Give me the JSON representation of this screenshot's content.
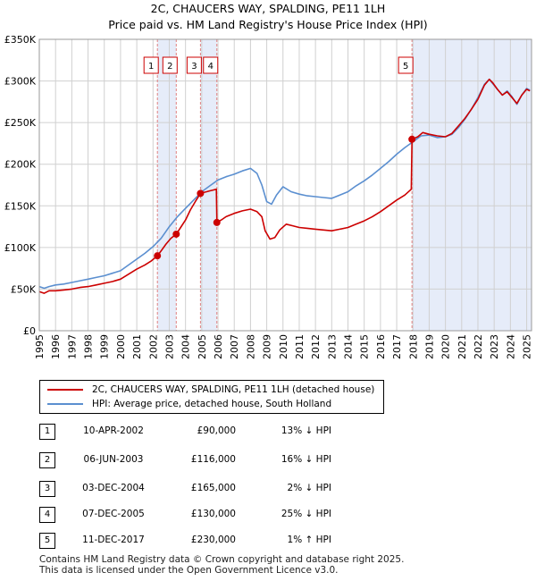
{
  "title": "2C, CHAUCERS WAY, SPALDING, PE11 1LH",
  "subtitle": "Price paid vs. HM Land Registry's House Price Index (HPI)",
  "colors": {
    "property": "#cc0000",
    "hpi": "#5b8fd0",
    "band": "#dde6f7",
    "marker_line": "#e08080"
  },
  "chart_data": {
    "type": "line",
    "title": "2C, CHAUCERS WAY, SPALDING, PE11 1LH",
    "subtitle": "Price paid vs. HM Land Registry's House Price Index (HPI)",
    "xlim": [
      1995,
      2025.3
    ],
    "ylim": [
      0,
      350000
    ],
    "y_ticks": [
      0,
      50000,
      100000,
      150000,
      200000,
      250000,
      300000,
      350000
    ],
    "y_tick_labels": [
      "£0",
      "£50K",
      "£100K",
      "£150K",
      "£200K",
      "£250K",
      "£300K",
      "£350K"
    ],
    "x_ticks": [
      1995,
      1996,
      1997,
      1998,
      1999,
      2000,
      2001,
      2002,
      2003,
      2004,
      2005,
      2006,
      2007,
      2008,
      2009,
      2010,
      2011,
      2012,
      2013,
      2014,
      2015,
      2016,
      2017,
      2018,
      2019,
      2020,
      2021,
      2022,
      2023,
      2024,
      2025
    ],
    "x_tick_labels": [
      "1995",
      "1996",
      "1997",
      "1998",
      "1999",
      "2000",
      "2001",
      "2002",
      "2003",
      "2004",
      "2005",
      "2006",
      "2007",
      "2008",
      "2009",
      "2010",
      "2011",
      "2012",
      "2013",
      "2014",
      "2015",
      "2016",
      "2017",
      "2018",
      "2019",
      "2020",
      "2021",
      "2022",
      "2023",
      "2024",
      "2025"
    ],
    "grid": true,
    "series": [
      {
        "name": "2C, CHAUCERS WAY, SPALDING, PE11 1LH (detached house)",
        "color": "#cc0000",
        "x": [
          1995.0,
          1995.3,
          1995.6,
          1996.0,
          1996.5,
          1997.0,
          1997.5,
          1998.0,
          1998.5,
          1999.0,
          1999.5,
          2000.0,
          2000.5,
          2001.0,
          2001.5,
          2001.9,
          2002.27,
          2002.5,
          2002.8,
          2003.1,
          2003.43,
          2003.7,
          2004.0,
          2004.3,
          2004.6,
          2004.92,
          2005.1,
          2005.3,
          2005.5,
          2005.7,
          2005.9,
          2005.93,
          2006.2,
          2006.5,
          2007.0,
          2007.5,
          2008.0,
          2008.4,
          2008.7,
          2008.9,
          2009.2,
          2009.5,
          2009.8,
          2010.2,
          2010.6,
          2011.0,
          2011.5,
          2012.0,
          2012.5,
          2013.0,
          2013.5,
          2014.0,
          2014.5,
          2015.0,
          2015.5,
          2016.0,
          2016.5,
          2017.0,
          2017.5,
          2017.9,
          2017.94,
          2018.3,
          2018.6,
          2019.0,
          2019.5,
          2020.0,
          2020.4,
          2020.8,
          2021.2,
          2021.6,
          2022.0,
          2022.4,
          2022.7,
          2022.9,
          2023.2,
          2023.5,
          2023.8,
          2024.1,
          2024.4,
          2024.7,
          2025.0,
          2025.2
        ],
        "y": [
          47000,
          45000,
          48000,
          48000,
          49000,
          50000,
          52000,
          53000,
          55000,
          57000,
          59000,
          62000,
          68000,
          74000,
          79000,
          84000,
          90000,
          96000,
          104000,
          111000,
          116000,
          124000,
          133000,
          145000,
          155000,
          165000,
          166000,
          167000,
          168000,
          169000,
          170000,
          130000,
          133000,
          137000,
          141000,
          144000,
          146000,
          143000,
          137000,
          120000,
          110000,
          112000,
          121000,
          128000,
          126000,
          124000,
          123000,
          122000,
          121000,
          120000,
          122000,
          124000,
          128000,
          132000,
          137000,
          143000,
          150000,
          157000,
          163000,
          170000,
          230000,
          233000,
          238000,
          236000,
          234000,
          233000,
          237000,
          246000,
          255000,
          266000,
          278000,
          295000,
          302000,
          298000,
          290000,
          283000,
          287000,
          280000,
          273000,
          283000,
          290000,
          288000
        ]
      },
      {
        "name": "HPI: Average price, detached house, South Holland",
        "color": "#5b8fd0",
        "x": [
          1995.0,
          1995.3,
          1995.6,
          1996.0,
          1996.5,
          1997.0,
          1997.5,
          1998.0,
          1998.5,
          1999.0,
          1999.5,
          2000.0,
          2000.5,
          2001.0,
          2001.5,
          2002.0,
          2002.5,
          2003.0,
          2003.5,
          2004.0,
          2004.5,
          2005.0,
          2005.5,
          2006.0,
          2006.5,
          2007.0,
          2007.5,
          2008.0,
          2008.4,
          2008.7,
          2009.0,
          2009.3,
          2009.6,
          2010.0,
          2010.5,
          2011.0,
          2011.5,
          2012.0,
          2012.5,
          2013.0,
          2013.5,
          2014.0,
          2014.5,
          2015.0,
          2015.5,
          2016.0,
          2016.5,
          2017.0,
          2017.5,
          2018.0,
          2018.5,
          2019.0,
          2019.5,
          2020.0,
          2020.4,
          2020.8,
          2021.2,
          2021.6,
          2022.0,
          2022.4,
          2022.7,
          2022.9,
          2023.2,
          2023.5,
          2023.8,
          2024.1,
          2024.4,
          2024.7,
          2025.0,
          2025.2
        ],
        "y": [
          53000,
          51000,
          53000,
          55000,
          56000,
          58000,
          60000,
          62000,
          64000,
          66000,
          69000,
          72000,
          79000,
          86000,
          93000,
          101000,
          111000,
          125000,
          137000,
          147000,
          157000,
          167000,
          174000,
          181000,
          185000,
          188000,
          192000,
          195000,
          189000,
          175000,
          155000,
          152000,
          163000,
          173000,
          167000,
          164000,
          162000,
          161000,
          160000,
          159000,
          163000,
          167000,
          174000,
          180000,
          187000,
          195000,
          203000,
          212000,
          220000,
          227000,
          234000,
          235000,
          232000,
          233000,
          236000,
          244000,
          254000,
          266000,
          280000,
          296000,
          302000,
          297000,
          290000,
          283000,
          288000,
          281000,
          272000,
          283000,
          291000,
          289000
        ]
      }
    ],
    "sales": [
      {
        "label": "1",
        "x": 2002.27,
        "y": 90000
      },
      {
        "label": "2",
        "x": 2003.43,
        "y": 116000
      },
      {
        "label": "3",
        "x": 2004.92,
        "y": 165000
      },
      {
        "label": "4",
        "x": 2005.93,
        "y": 130000
      },
      {
        "label": "5",
        "x": 2017.94,
        "y": 230000
      }
    ],
    "shaded_bands": [
      [
        2002.27,
        2003.43
      ],
      [
        2004.92,
        2005.93
      ],
      [
        2017.94,
        2025.3
      ]
    ]
  },
  "legend": {
    "property_label": "2C, CHAUCERS WAY, SPALDING, PE11 1LH (detached house)",
    "hpi_label": "HPI: Average price, detached house, South Holland"
  },
  "transactions": [
    {
      "num": "1",
      "date": "10-APR-2002",
      "price": "£90,000",
      "hpi": "13% ↓ HPI"
    },
    {
      "num": "2",
      "date": "06-JUN-2003",
      "price": "£116,000",
      "hpi": "16% ↓ HPI"
    },
    {
      "num": "3",
      "date": "03-DEC-2004",
      "price": "£165,000",
      "hpi": "2% ↓ HPI"
    },
    {
      "num": "4",
      "date": "07-DEC-2005",
      "price": "£130,000",
      "hpi": "25% ↓ HPI"
    },
    {
      "num": "5",
      "date": "11-DEC-2017",
      "price": "£230,000",
      "hpi": "1% ↑ HPI"
    }
  ],
  "footer": {
    "line1": "Contains HM Land Registry data © Crown copyright and database right 2025.",
    "line2": "This data is licensed under the Open Government Licence v3.0."
  }
}
